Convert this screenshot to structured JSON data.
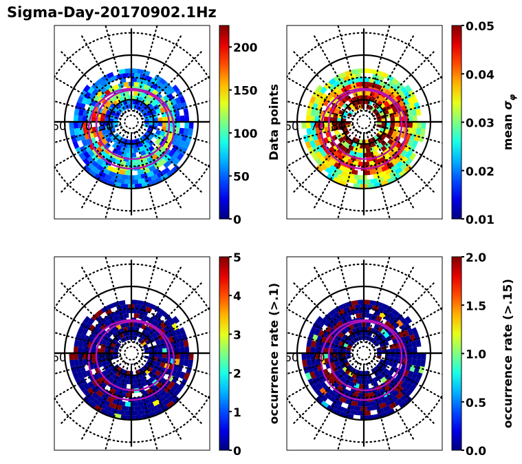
{
  "figure": {
    "title": "Sigma-Day-20170902.1Hz",
    "colormap": "jet",
    "overlay_color": "#b414b4",
    "grid_color": "#000000"
  },
  "chart_data": [
    {
      "type": "heatmap",
      "projection": "polar",
      "title": "",
      "latitude_labels": [
        "60",
        "70",
        "80"
      ],
      "solid_circles_lat": [
        60,
        80
      ],
      "dotted_circles_lat": [
        50,
        70,
        85
      ],
      "colorbar": {
        "label": "Data points",
        "ticks": [
          "0",
          "50",
          "100",
          "150",
          "200"
        ],
        "range": [
          0,
          225
        ]
      },
      "overlay": "two magenta auroral oval boundaries",
      "summary": "Mostly blue (20-80) with peaks up to ~200 near dusk/dawn at ~70 deg"
    },
    {
      "type": "heatmap",
      "projection": "polar",
      "title": "",
      "latitude_labels": [
        "60",
        "70",
        "80"
      ],
      "solid_circles_lat": [
        60,
        80
      ],
      "dotted_circles_lat": [
        50,
        70,
        85
      ],
      "colorbar": {
        "label": "mean σφ",
        "ticks": [
          "0.01",
          "0.02",
          "0.03",
          "0.04",
          "0.05"
        ],
        "range": [
          0.01,
          0.05
        ]
      },
      "overlay": "two magenta auroral oval boundaries",
      "summary": "Outer ring ~0.025-0.035, inner ring saturated ~0.05"
    },
    {
      "type": "heatmap",
      "projection": "polar",
      "title": "",
      "latitude_labels": [
        "60",
        "70",
        "80"
      ],
      "solid_circles_lat": [
        60,
        80
      ],
      "dotted_circles_lat": [
        50,
        70,
        85
      ],
      "colorbar": {
        "label": "occurrence rate (>.1)",
        "ticks": [
          "0",
          "1",
          "2",
          "3",
          "4",
          "5"
        ],
        "range": [
          0,
          5
        ]
      },
      "overlay": "two magenta auroral oval boundaries",
      "summary": "Mostly 0 with saturated (5) patches along the oval"
    },
    {
      "type": "heatmap",
      "projection": "polar",
      "title": "",
      "latitude_labels": [
        "60",
        "70",
        "80"
      ],
      "solid_circles_lat": [
        60,
        80
      ],
      "dotted_circles_lat": [
        50,
        70,
        85
      ],
      "colorbar": {
        "label": "occurrence rate (>.15)",
        "ticks": [
          "0.0",
          "0.5",
          "1.0",
          "1.5",
          "2.0"
        ],
        "range": [
          0,
          2
        ]
      },
      "overlay": "two magenta auroral oval boundaries",
      "summary": "Mostly 0 with saturated (2.0) patches along the oval"
    }
  ]
}
